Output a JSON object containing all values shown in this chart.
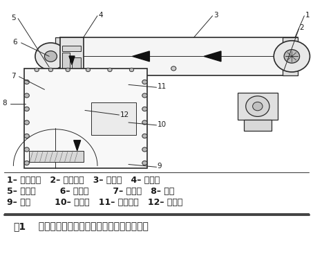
{
  "bg_color": "#ffffff",
  "text_color": "#1a1a1a",
  "line_color": "#2a2a2a",
  "legend_line1": "1– 传动部分   2– 给料装置   3– 电磁阀   4– 给料口",
  "legend_line2": "5– 双螺旋        6– 截料门        7– 三联件   8– 秤斗",
  "legend_line3": "9– 秤体        10– 钢丝绳   11– 限位螺栓   12– 传感器",
  "fig_label": "图1",
  "fig_title": "  数字式、智能型定量包装秤机械结构示意图",
  "label_fs": 9,
  "title_fs": 10,
  "num_label_fs": 7.5
}
